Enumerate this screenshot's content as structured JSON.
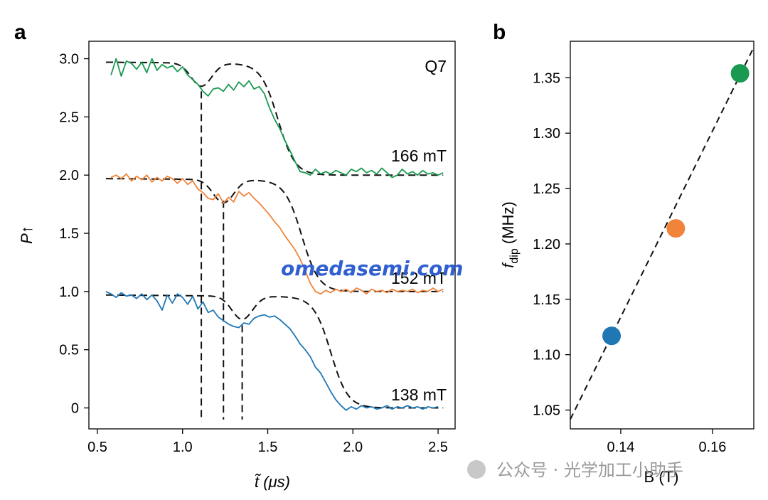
{
  "panels": {
    "a": "a",
    "b": "b"
  },
  "chart_data": [
    {
      "type": "line",
      "panel": "a",
      "xlabel": "t̃ (μs)",
      "ylabel": "P↑",
      "xlim": [
        0.45,
        2.6
      ],
      "ylim": [
        -0.18,
        3.15
      ],
      "x_ticks": [
        "0.5",
        "1.0",
        "1.5",
        "2.0",
        "2.5"
      ],
      "y_ticks": [
        "0",
        "0.5",
        "1.0",
        "1.5",
        "2.0",
        "2.5",
        "3.0"
      ],
      "annotation": "Q7",
      "grid": false,
      "vlines": [
        {
          "x": 1.11,
          "ymin": -0.1,
          "ymax": 2.72
        },
        {
          "x": 1.24,
          "ymin": -0.1,
          "ymax": 1.78
        },
        {
          "x": 1.35,
          "ymin": -0.1,
          "ymax": 0.71
        }
      ],
      "series": [
        {
          "label": "166 mT",
          "color": "#1a9a50",
          "offset": 2.0,
          "dip_center": 1.11,
          "step_center": 1.56,
          "x": [
            0.58,
            0.61,
            0.64,
            0.67,
            0.7,
            0.73,
            0.76,
            0.79,
            0.82,
            0.85,
            0.88,
            0.91,
            0.94,
            0.97,
            1.0,
            1.03,
            1.06,
            1.09,
            1.12,
            1.15,
            1.18,
            1.21,
            1.24,
            1.27,
            1.3,
            1.33,
            1.36,
            1.39,
            1.42,
            1.45,
            1.48,
            1.51,
            1.54,
            1.57,
            1.6,
            1.63,
            1.66,
            1.69,
            1.72,
            1.75,
            1.78,
            1.81,
            1.84,
            1.87,
            1.9,
            1.93,
            1.96,
            1.99,
            2.02,
            2.05,
            2.08,
            2.11,
            2.14,
            2.17,
            2.2,
            2.23,
            2.26,
            2.29,
            2.32,
            2.35,
            2.38,
            2.41,
            2.44,
            2.47,
            2.5,
            2.53
          ],
          "y": [
            2.86,
            3.0,
            2.85,
            2.98,
            2.96,
            2.91,
            2.97,
            2.88,
            3.0,
            2.9,
            2.95,
            2.92,
            2.94,
            2.89,
            2.93,
            2.86,
            2.82,
            2.78,
            2.72,
            2.68,
            2.74,
            2.75,
            2.72,
            2.78,
            2.73,
            2.8,
            2.76,
            2.81,
            2.74,
            2.76,
            2.7,
            2.58,
            2.48,
            2.4,
            2.3,
            2.21,
            2.12,
            2.03,
            2.02,
            2.0,
            2.05,
            2.01,
            2.03,
            2.01,
            2.04,
            2.02,
            2.0,
            2.05,
            2.03,
            2.06,
            2.02,
            2.04,
            2.01,
            2.06,
            2.02,
            1.98,
            2.0,
            2.05,
            2.01,
            2.03,
            2.0,
            2.04,
            2.01,
            2.02,
            2.0,
            2.02
          ]
        },
        {
          "label": "152 mT",
          "color": "#f0843a",
          "offset": 1.0,
          "dip_center": 1.24,
          "step_center": 1.7,
          "x": [
            0.58,
            0.61,
            0.64,
            0.67,
            0.7,
            0.73,
            0.76,
            0.79,
            0.82,
            0.85,
            0.88,
            0.91,
            0.94,
            0.97,
            1.0,
            1.03,
            1.06,
            1.09,
            1.12,
            1.15,
            1.18,
            1.21,
            1.24,
            1.27,
            1.3,
            1.33,
            1.36,
            1.39,
            1.42,
            1.45,
            1.48,
            1.51,
            1.54,
            1.57,
            1.6,
            1.63,
            1.66,
            1.69,
            1.72,
            1.75,
            1.78,
            1.81,
            1.84,
            1.87,
            1.9,
            1.93,
            1.96,
            1.99,
            2.02,
            2.05,
            2.08,
            2.11,
            2.14,
            2.17,
            2.2,
            2.23,
            2.26,
            2.29,
            2.32,
            2.35,
            2.38,
            2.41,
            2.44,
            2.47,
            2.5,
            2.53
          ],
          "y": [
            1.98,
            2.0,
            1.97,
            2.01,
            1.95,
            1.99,
            1.96,
            2.0,
            1.94,
            1.98,
            1.95,
            1.99,
            1.97,
            1.93,
            1.97,
            1.92,
            1.95,
            1.88,
            1.85,
            1.8,
            1.79,
            1.84,
            1.76,
            1.81,
            1.77,
            1.86,
            1.82,
            1.85,
            1.8,
            1.76,
            1.71,
            1.66,
            1.6,
            1.55,
            1.48,
            1.42,
            1.36,
            1.28,
            1.18,
            1.07,
            1.0,
            0.98,
            1.01,
            0.99,
            1.02,
            1.0,
            1.02,
            0.99,
            1.03,
            1.01,
            0.98,
            1.02,
            1.0,
            1.01,
            0.99,
            1.02,
            1.0,
            1.01,
            1.0,
            1.02,
            0.99,
            1.01,
            1.0,
            1.03,
            1.0,
            1.02
          ]
        },
        {
          "label": "138 mT",
          "color": "#1f77b4",
          "offset": 0.0,
          "dip_center": 1.35,
          "step_center": 1.87,
          "x": [
            0.55,
            0.58,
            0.61,
            0.64,
            0.67,
            0.7,
            0.73,
            0.76,
            0.79,
            0.82,
            0.85,
            0.88,
            0.91,
            0.94,
            0.97,
            1.0,
            1.03,
            1.06,
            1.09,
            1.12,
            1.15,
            1.18,
            1.21,
            1.24,
            1.27,
            1.3,
            1.33,
            1.36,
            1.39,
            1.42,
            1.45,
            1.48,
            1.51,
            1.54,
            1.57,
            1.6,
            1.63,
            1.66,
            1.69,
            1.72,
            1.75,
            1.78,
            1.81,
            1.84,
            1.87,
            1.9,
            1.93,
            1.96,
            1.99,
            2.02,
            2.05,
            2.08,
            2.11,
            2.14,
            2.17,
            2.2,
            2.23,
            2.26,
            2.29,
            2.32,
            2.35,
            2.38,
            2.41,
            2.44,
            2.47,
            2.5
          ],
          "y": [
            1.0,
            0.98,
            0.95,
            0.99,
            0.96,
            0.97,
            0.94,
            0.98,
            0.93,
            0.97,
            0.92,
            0.84,
            0.97,
            0.9,
            0.98,
            0.95,
            0.89,
            0.96,
            0.85,
            0.91,
            0.82,
            0.84,
            0.78,
            0.75,
            0.72,
            0.7,
            0.69,
            0.73,
            0.72,
            0.77,
            0.79,
            0.8,
            0.78,
            0.79,
            0.76,
            0.72,
            0.68,
            0.62,
            0.55,
            0.5,
            0.44,
            0.35,
            0.3,
            0.22,
            0.14,
            0.07,
            0.02,
            -0.02,
            0.01,
            -0.01,
            0.02,
            0.0,
            0.01,
            -0.01,
            0.0,
            0.02,
            -0.01,
            0.01,
            0.0,
            0.02,
            0.0,
            0.01,
            -0.01,
            0.01,
            0.0,
            0.01
          ]
        }
      ]
    },
    {
      "type": "scatter",
      "panel": "b",
      "xlabel": "B (T)",
      "ylabel": "f_dip (MHz)",
      "ylabel_main": "f",
      "ylabel_sub": "dip",
      "ylabel_unit": " (MHz)",
      "xlim": [
        0.129,
        0.169
      ],
      "ylim": [
        1.033,
        1.383
      ],
      "x_ticks": [
        "0.14",
        "0.16"
      ],
      "y_ticks": [
        "1.05",
        "1.10",
        "1.15",
        "1.20",
        "1.25",
        "1.30",
        "1.35"
      ],
      "grid": false,
      "points": [
        {
          "x": 0.138,
          "y": 1.117,
          "color": "#1f77b4"
        },
        {
          "x": 0.152,
          "y": 1.214,
          "color": "#f0843a"
        },
        {
          "x": 0.166,
          "y": 1.354,
          "color": "#1a9a50"
        }
      ],
      "fit_line": {
        "slope": 8.4,
        "intercept": -0.042,
        "style": "dashed"
      }
    }
  ],
  "watermark": {
    "main": "omedasemi.com",
    "footer": "公众号 · 光学加工小助手"
  }
}
